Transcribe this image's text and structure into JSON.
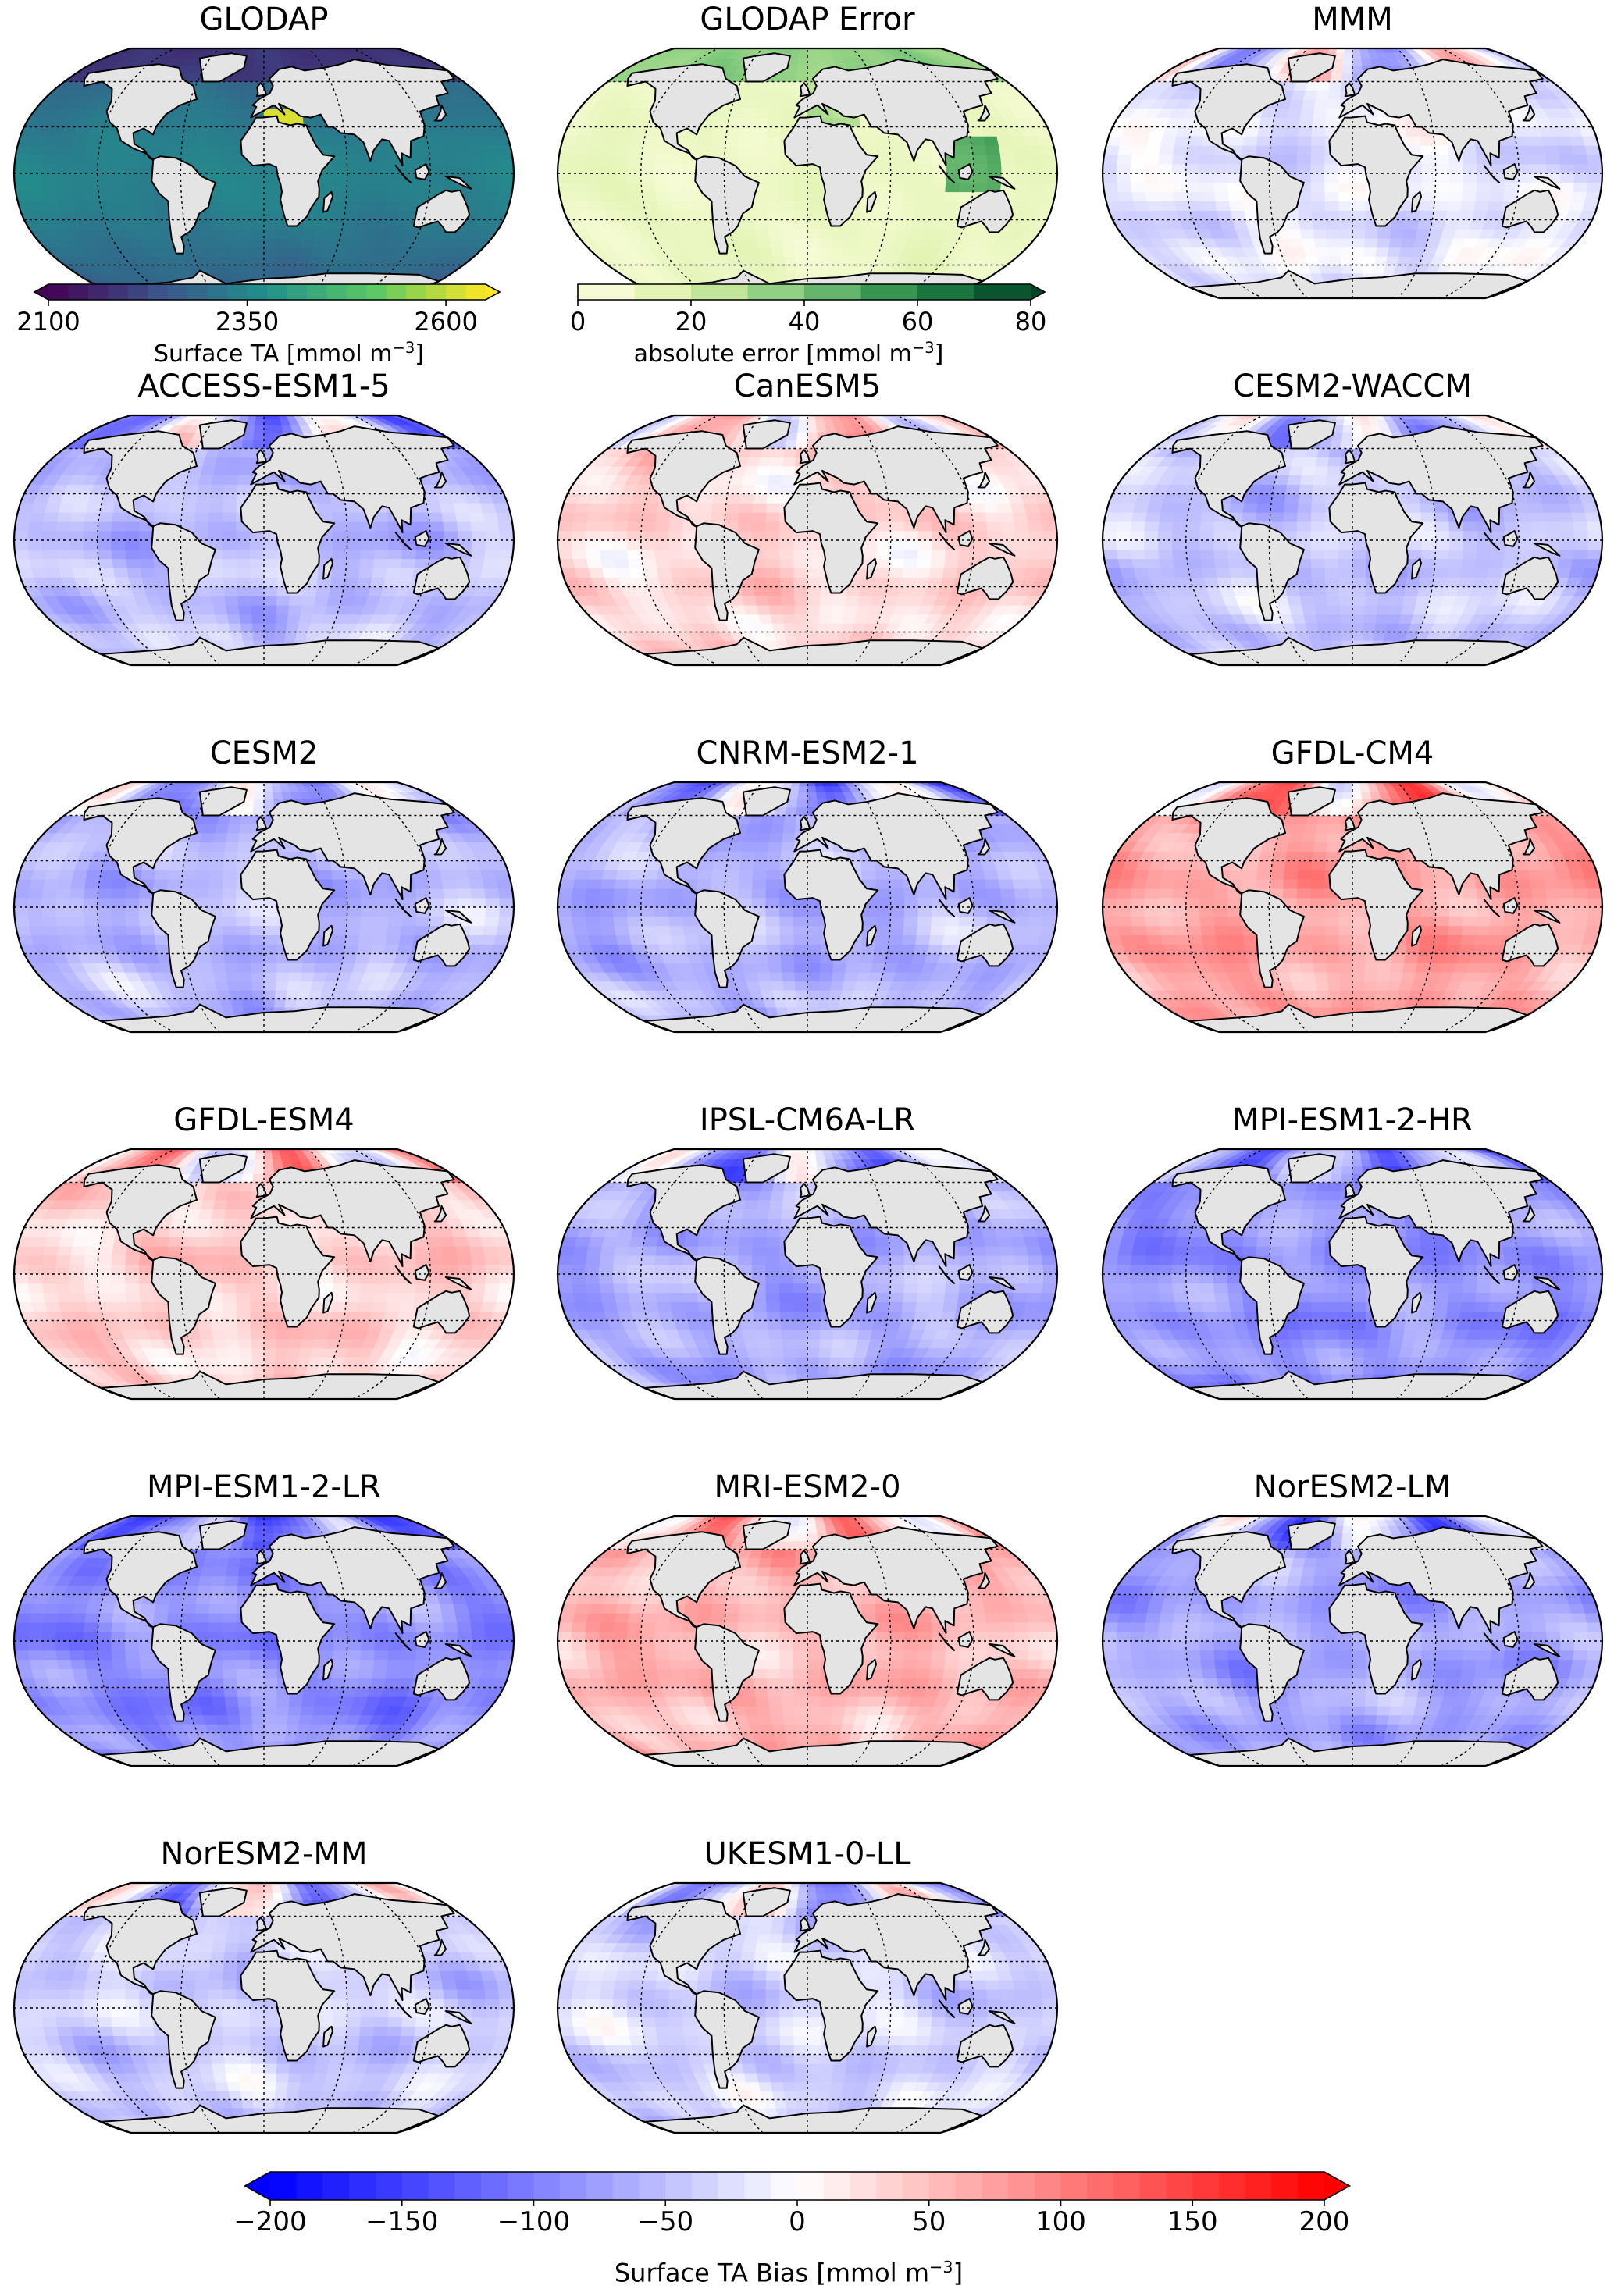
{
  "panels": [
    {
      "title": "GLODAP",
      "kind": "abs"
    },
    {
      "title": "GLODAP Error",
      "kind": "err"
    },
    {
      "title": "MMM",
      "kind": "bias",
      "bias": -20
    },
    {
      "title": "ACCESS-ESM1-5",
      "kind": "bias",
      "bias": -50
    },
    {
      "title": "CanESM5",
      "kind": "bias",
      "bias": 30
    },
    {
      "title": "CESM2-WACCM",
      "kind": "bias",
      "bias": -45
    },
    {
      "title": "CESM2",
      "kind": "bias",
      "bias": -55
    },
    {
      "title": "CNRM-ESM2-1",
      "kind": "bias",
      "bias": -60
    },
    {
      "title": "GFDL-CM4",
      "kind": "bias",
      "bias": 70
    },
    {
      "title": "GFDL-ESM4",
      "kind": "bias",
      "bias": 35
    },
    {
      "title": "IPSL-CM6A-LR",
      "kind": "bias",
      "bias": -65
    },
    {
      "title": "MPI-ESM1-2-HR",
      "kind": "bias",
      "bias": -85
    },
    {
      "title": "MPI-ESM1-2-LR",
      "kind": "bias",
      "bias": -90
    },
    {
      "title": "MRI-ESM2-0",
      "kind": "bias",
      "bias": 55
    },
    {
      "title": "NorESM2-LM",
      "kind": "bias",
      "bias": -70
    },
    {
      "title": "NorESM2-MM",
      "kind": "bias",
      "bias": -40
    },
    {
      "title": "UKESM1-0-LL",
      "kind": "bias",
      "bias": -35
    }
  ],
  "colorbars": {
    "ta": {
      "label_main": "Surface TA [mmol m",
      "label_exp": "−3",
      "label_end": "]",
      "range": [
        2100,
        2650
      ],
      "ticks": [
        "2100",
        "2350",
        "2600"
      ],
      "tick_values": [
        2100,
        2350,
        2600
      ],
      "colormap": "viridis"
    },
    "error": {
      "label_main": "absolute error [mmol m",
      "label_exp": "−3",
      "label_end": "]",
      "range": [
        0,
        80
      ],
      "ticks": [
        "0",
        "20",
        "40",
        "60",
        "80"
      ],
      "tick_values": [
        0,
        20,
        40,
        60,
        80
      ],
      "colormap": "YlGn"
    },
    "bias": {
      "label_main": "Surface TA Bias [mmol m",
      "label_exp": "−3",
      "label_end": "]",
      "range": [
        -200,
        200
      ],
      "ticks": [
        "−200",
        "−150",
        "−100",
        "−50",
        "0",
        "50",
        "100",
        "150",
        "200"
      ],
      "tick_values": [
        -200,
        -150,
        -100,
        -50,
        0,
        50,
        100,
        150,
        200
      ],
      "colormap": "bwr"
    }
  },
  "colors": {
    "land": "#e4e4e4",
    "coast": "#000000",
    "bias_negative": "#0000ff",
    "bias_positive": "#ff0000"
  }
}
